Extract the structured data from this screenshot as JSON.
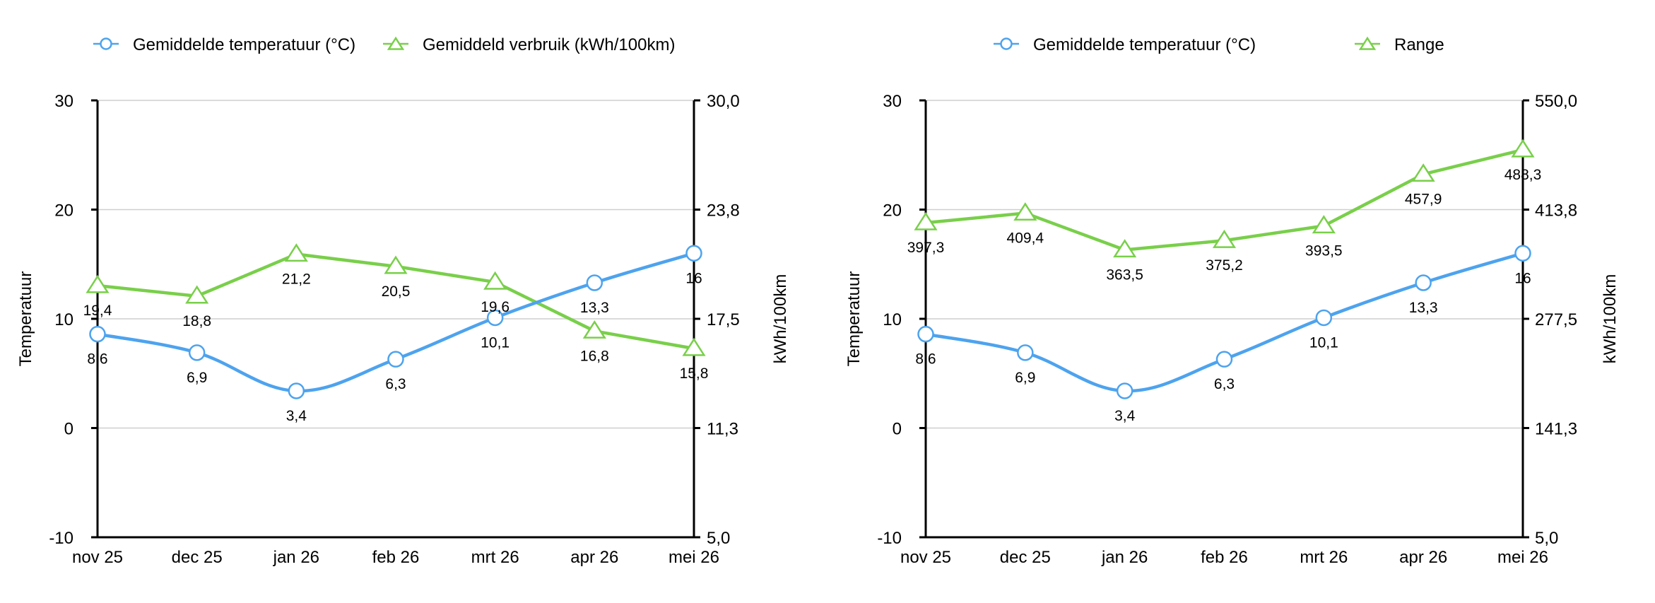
{
  "colors": {
    "temperature": "#4da3ee",
    "secondary": "#79cf4a"
  },
  "chart_data": [
    {
      "type": "line",
      "categories": [
        "nov 25",
        "dec 25",
        "jan 26",
        "feb 26",
        "mrt 26",
        "apr 26",
        "mei 26"
      ],
      "series": [
        {
          "name": "Gemiddelde temperatuur (°C)",
          "axis": "left",
          "marker": "circle",
          "smooth": true,
          "values": [
            8.6,
            6.9,
            3.4,
            6.3,
            10.1,
            13.3,
            16
          ],
          "labels": [
            "8,6",
            "6,9",
            "3,4",
            "6,3",
            "10,1",
            "13,3",
            "16"
          ]
        },
        {
          "name": "Gemiddeld verbruik (kWh/100km)",
          "axis": "right",
          "marker": "triangle",
          "smooth": false,
          "values": [
            19.4,
            18.8,
            21.2,
            20.5,
            19.6,
            16.8,
            15.8
          ],
          "labels": [
            "19,4",
            "18,8",
            "21,2",
            "20,5",
            "19,6",
            "16,8",
            "15,8"
          ]
        }
      ],
      "ylabel": "Temperatuur",
      "y2label": "kWh/100km",
      "ylim": [
        -10,
        30
      ],
      "y2lim": [
        5.0,
        30.0
      ],
      "yticks": [
        "30",
        "20",
        "10",
        "0",
        "-10"
      ],
      "y2ticks": [
        "30,0",
        "23,8",
        "17,5",
        "11,3",
        "5,0"
      ],
      "grid": true,
      "legend": "top"
    },
    {
      "type": "line",
      "categories": [
        "nov 25",
        "dec 25",
        "jan 26",
        "feb 26",
        "mrt 26",
        "apr 26",
        "mei 26"
      ],
      "series": [
        {
          "name": "Gemiddelde temperatuur (°C)",
          "axis": "left",
          "marker": "circle",
          "smooth": true,
          "values": [
            8.6,
            6.9,
            3.4,
            6.3,
            10.1,
            13.3,
            16
          ],
          "labels": [
            "8,6",
            "6,9",
            "3,4",
            "6,3",
            "10,1",
            "13,3",
            "16"
          ]
        },
        {
          "name": "Range",
          "axis": "right",
          "marker": "triangle",
          "smooth": false,
          "values": [
            397.3,
            409.4,
            363.5,
            375.2,
            393.5,
            457.9,
            488.3
          ],
          "labels": [
            "397,3",
            "409,4",
            "363,5",
            "375,2",
            "393,5",
            "457,9",
            "488,3"
          ]
        }
      ],
      "ylabel": "Temperatuur",
      "y2label": "kWh/100km",
      "ylim": [
        -10,
        30
      ],
      "y2lim": [
        5.0,
        550.0
      ],
      "yticks": [
        "30",
        "20",
        "10",
        "0",
        "-10"
      ],
      "y2ticks": [
        "550,0",
        "413,8",
        "277,5",
        "141,3",
        "5,0"
      ],
      "grid": true,
      "legend": "top"
    }
  ]
}
